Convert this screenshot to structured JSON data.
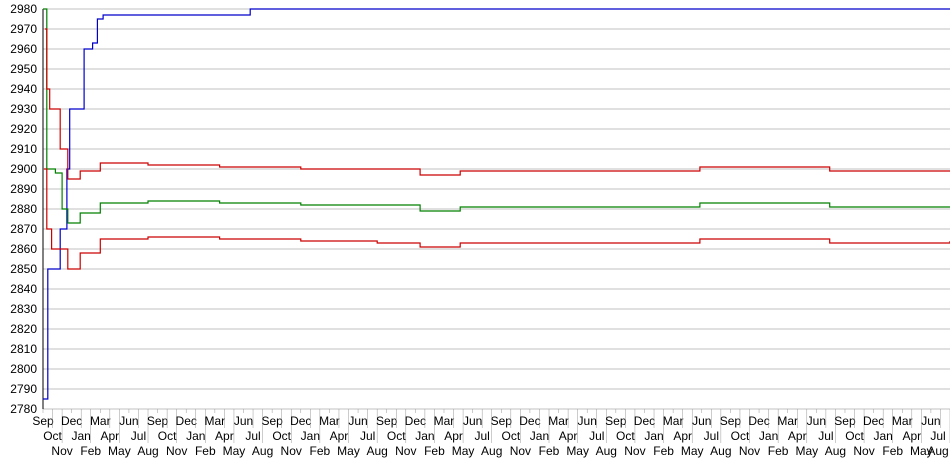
{
  "chart_data": {
    "type": "line",
    "title": "",
    "xlabel": "",
    "ylabel": "",
    "ylim": [
      2780,
      2980
    ],
    "yticks": [
      2780,
      2790,
      2800,
      2810,
      2820,
      2830,
      2840,
      2850,
      2860,
      2870,
      2880,
      2890,
      2900,
      2910,
      2920,
      2930,
      2940,
      2950,
      2960,
      2970,
      2980
    ],
    "grid": true,
    "legend": "none",
    "x_tick_labels": [
      "Sep",
      "Oct",
      "Nov",
      "Dec",
      "Jan",
      "Feb",
      "Mar",
      "Apr",
      "May",
      "Jun",
      "Jul",
      "Aug",
      "Sep",
      "Oct",
      "Nov",
      "Dec",
      "Jan",
      "Feb",
      "Mar",
      "Apr",
      "May",
      "Jun",
      "Jul",
      "Aug",
      "Sep",
      "Oct",
      "Nov",
      "Dec",
      "Jan",
      "Feb",
      "Mar",
      "Apr",
      "May",
      "Jun",
      "Jul",
      "Aug",
      "Sep",
      "Oct",
      "Nov",
      "Dec",
      "Jan",
      "Feb",
      "Mar",
      "Apr",
      "May",
      "Jun",
      "Jul",
      "Aug",
      "Sep",
      "Oct",
      "Nov",
      "Dec",
      "Jan",
      "Feb",
      "Mar",
      "Apr",
      "May",
      "Jun",
      "Jul",
      "Aug",
      "Sep",
      "Oct",
      "Nov",
      "Dec",
      "Jan",
      "Feb",
      "Mar",
      "Apr",
      "May",
      "Jun",
      "Jul",
      "Aug",
      "Sep",
      "Oct",
      "Nov",
      "Dec",
      "Jan",
      "Feb",
      "Mar",
      "Apr",
      "May",
      "Jun",
      "Jul",
      "Aug",
      "Sep",
      "Oct",
      "Nov",
      "Dec",
      "Jan",
      "Feb",
      "Mar",
      "Apr",
      "May",
      "Jun",
      "Jul",
      "Aug"
    ],
    "series": [
      {
        "color": "#0000cc",
        "points": [
          [
            0,
            2785
          ],
          [
            0.5,
            2850
          ],
          [
            1.8,
            2870
          ],
          [
            2.5,
            2900
          ],
          [
            2.8,
            2930
          ],
          [
            3.4,
            2930
          ],
          [
            4.3,
            2960
          ],
          [
            5.2,
            2963
          ],
          [
            5.7,
            2975
          ],
          [
            6.3,
            2977
          ],
          [
            21.2,
            2977
          ],
          [
            21.7,
            2980
          ],
          [
            95,
            2980
          ]
        ]
      },
      {
        "color": "#008000",
        "points": [
          [
            0,
            2980
          ],
          [
            0.4,
            2900
          ],
          [
            1.3,
            2898
          ],
          [
            2.0,
            2880
          ],
          [
            2.6,
            2873
          ],
          [
            3.9,
            2878
          ],
          [
            6.0,
            2883
          ],
          [
            11,
            2884
          ],
          [
            18.5,
            2883
          ],
          [
            27,
            2882
          ],
          [
            35,
            2882
          ],
          [
            39.5,
            2879
          ],
          [
            43.7,
            2881
          ],
          [
            58.3,
            2881
          ],
          [
            68.8,
            2883
          ],
          [
            79.3,
            2883
          ],
          [
            82.4,
            2881
          ],
          [
            95,
            2881
          ]
        ]
      },
      {
        "color": "#cc0000",
        "points": [
          [
            0.2,
            2970
          ],
          [
            0.4,
            2940
          ],
          [
            0.7,
            2930
          ],
          [
            1.8,
            2910
          ],
          [
            2.6,
            2895
          ],
          [
            3.9,
            2899
          ],
          [
            6.0,
            2903
          ],
          [
            11,
            2902
          ],
          [
            18.5,
            2901
          ],
          [
            27,
            2900
          ],
          [
            35,
            2900
          ],
          [
            39.5,
            2897
          ],
          [
            43.7,
            2899
          ],
          [
            58.3,
            2899
          ],
          [
            68.8,
            2901
          ],
          [
            79.3,
            2901
          ],
          [
            82.4,
            2899
          ],
          [
            95,
            2899
          ]
        ]
      },
      {
        "color": "#cc0000",
        "points": [
          [
            0.1,
            2900
          ],
          [
            0.4,
            2870
          ],
          [
            0.9,
            2860
          ],
          [
            2.6,
            2850
          ],
          [
            3.9,
            2858
          ],
          [
            6.0,
            2865
          ],
          [
            11,
            2866
          ],
          [
            18.5,
            2865
          ],
          [
            27,
            2864
          ],
          [
            35,
            2863
          ],
          [
            39.5,
            2861
          ],
          [
            43.7,
            2863
          ],
          [
            58.3,
            2863
          ],
          [
            68.8,
            2865
          ],
          [
            79.3,
            2865
          ],
          [
            82.4,
            2863
          ],
          [
            95,
            2864
          ]
        ]
      }
    ]
  }
}
